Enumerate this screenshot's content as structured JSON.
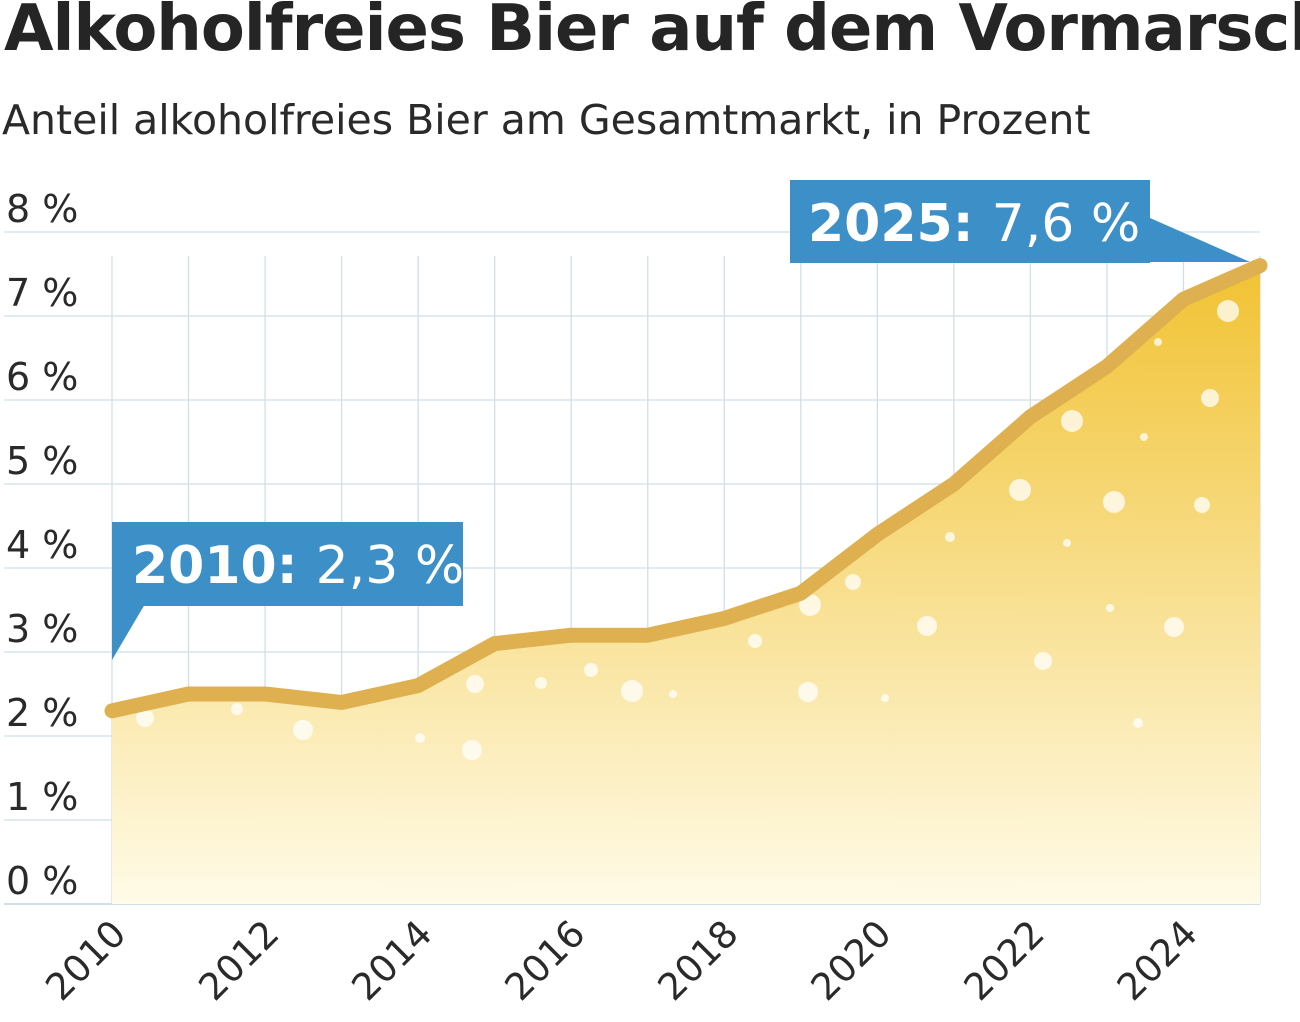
{
  "title": "Alkoholfreies Bier auf dem Vormarsch",
  "subtitle": "Anteil alkoholfreies Bier am Gesamtmarkt, in Prozent",
  "colors": {
    "line": "#deb050",
    "fill_top": "#f1c232",
    "fill_bottom": "#fffbe8",
    "callout": "#3d8fc7",
    "grid": "#cfe0ea"
  },
  "chart_data": {
    "type": "area",
    "title": "Alkoholfreies Bier auf dem Vormarsch",
    "subtitle": "Anteil alkoholfreies Bier am Gesamtmarkt, in Prozent",
    "xlabel": "",
    "ylabel": "",
    "ylim": [
      0,
      8
    ],
    "xlim": [
      2010,
      2025
    ],
    "grid": true,
    "legend": "none",
    "x": [
      2010,
      2011,
      2012,
      2013,
      2014,
      2015,
      2016,
      2017,
      2018,
      2019,
      2020,
      2021,
      2022,
      2023,
      2024,
      2025
    ],
    "values": [
      2.3,
      2.5,
      2.5,
      2.4,
      2.6,
      3.1,
      3.2,
      3.2,
      3.4,
      3.7,
      4.4,
      5.0,
      5.8,
      6.4,
      7.2,
      7.6
    ],
    "y_ticks": [
      "0 %",
      "1 %",
      "2 %",
      "3 %",
      "4 %",
      "5 %",
      "6 %",
      "7 %",
      "8 %"
    ],
    "x_ticks": [
      "2010",
      "2012",
      "2014",
      "2016",
      "2018",
      "2020",
      "2022",
      "2024"
    ],
    "annotations": [
      {
        "year": "2010:",
        "value": "2,3 %"
      },
      {
        "year": "2025:",
        "value": "7,6 %"
      }
    ]
  }
}
